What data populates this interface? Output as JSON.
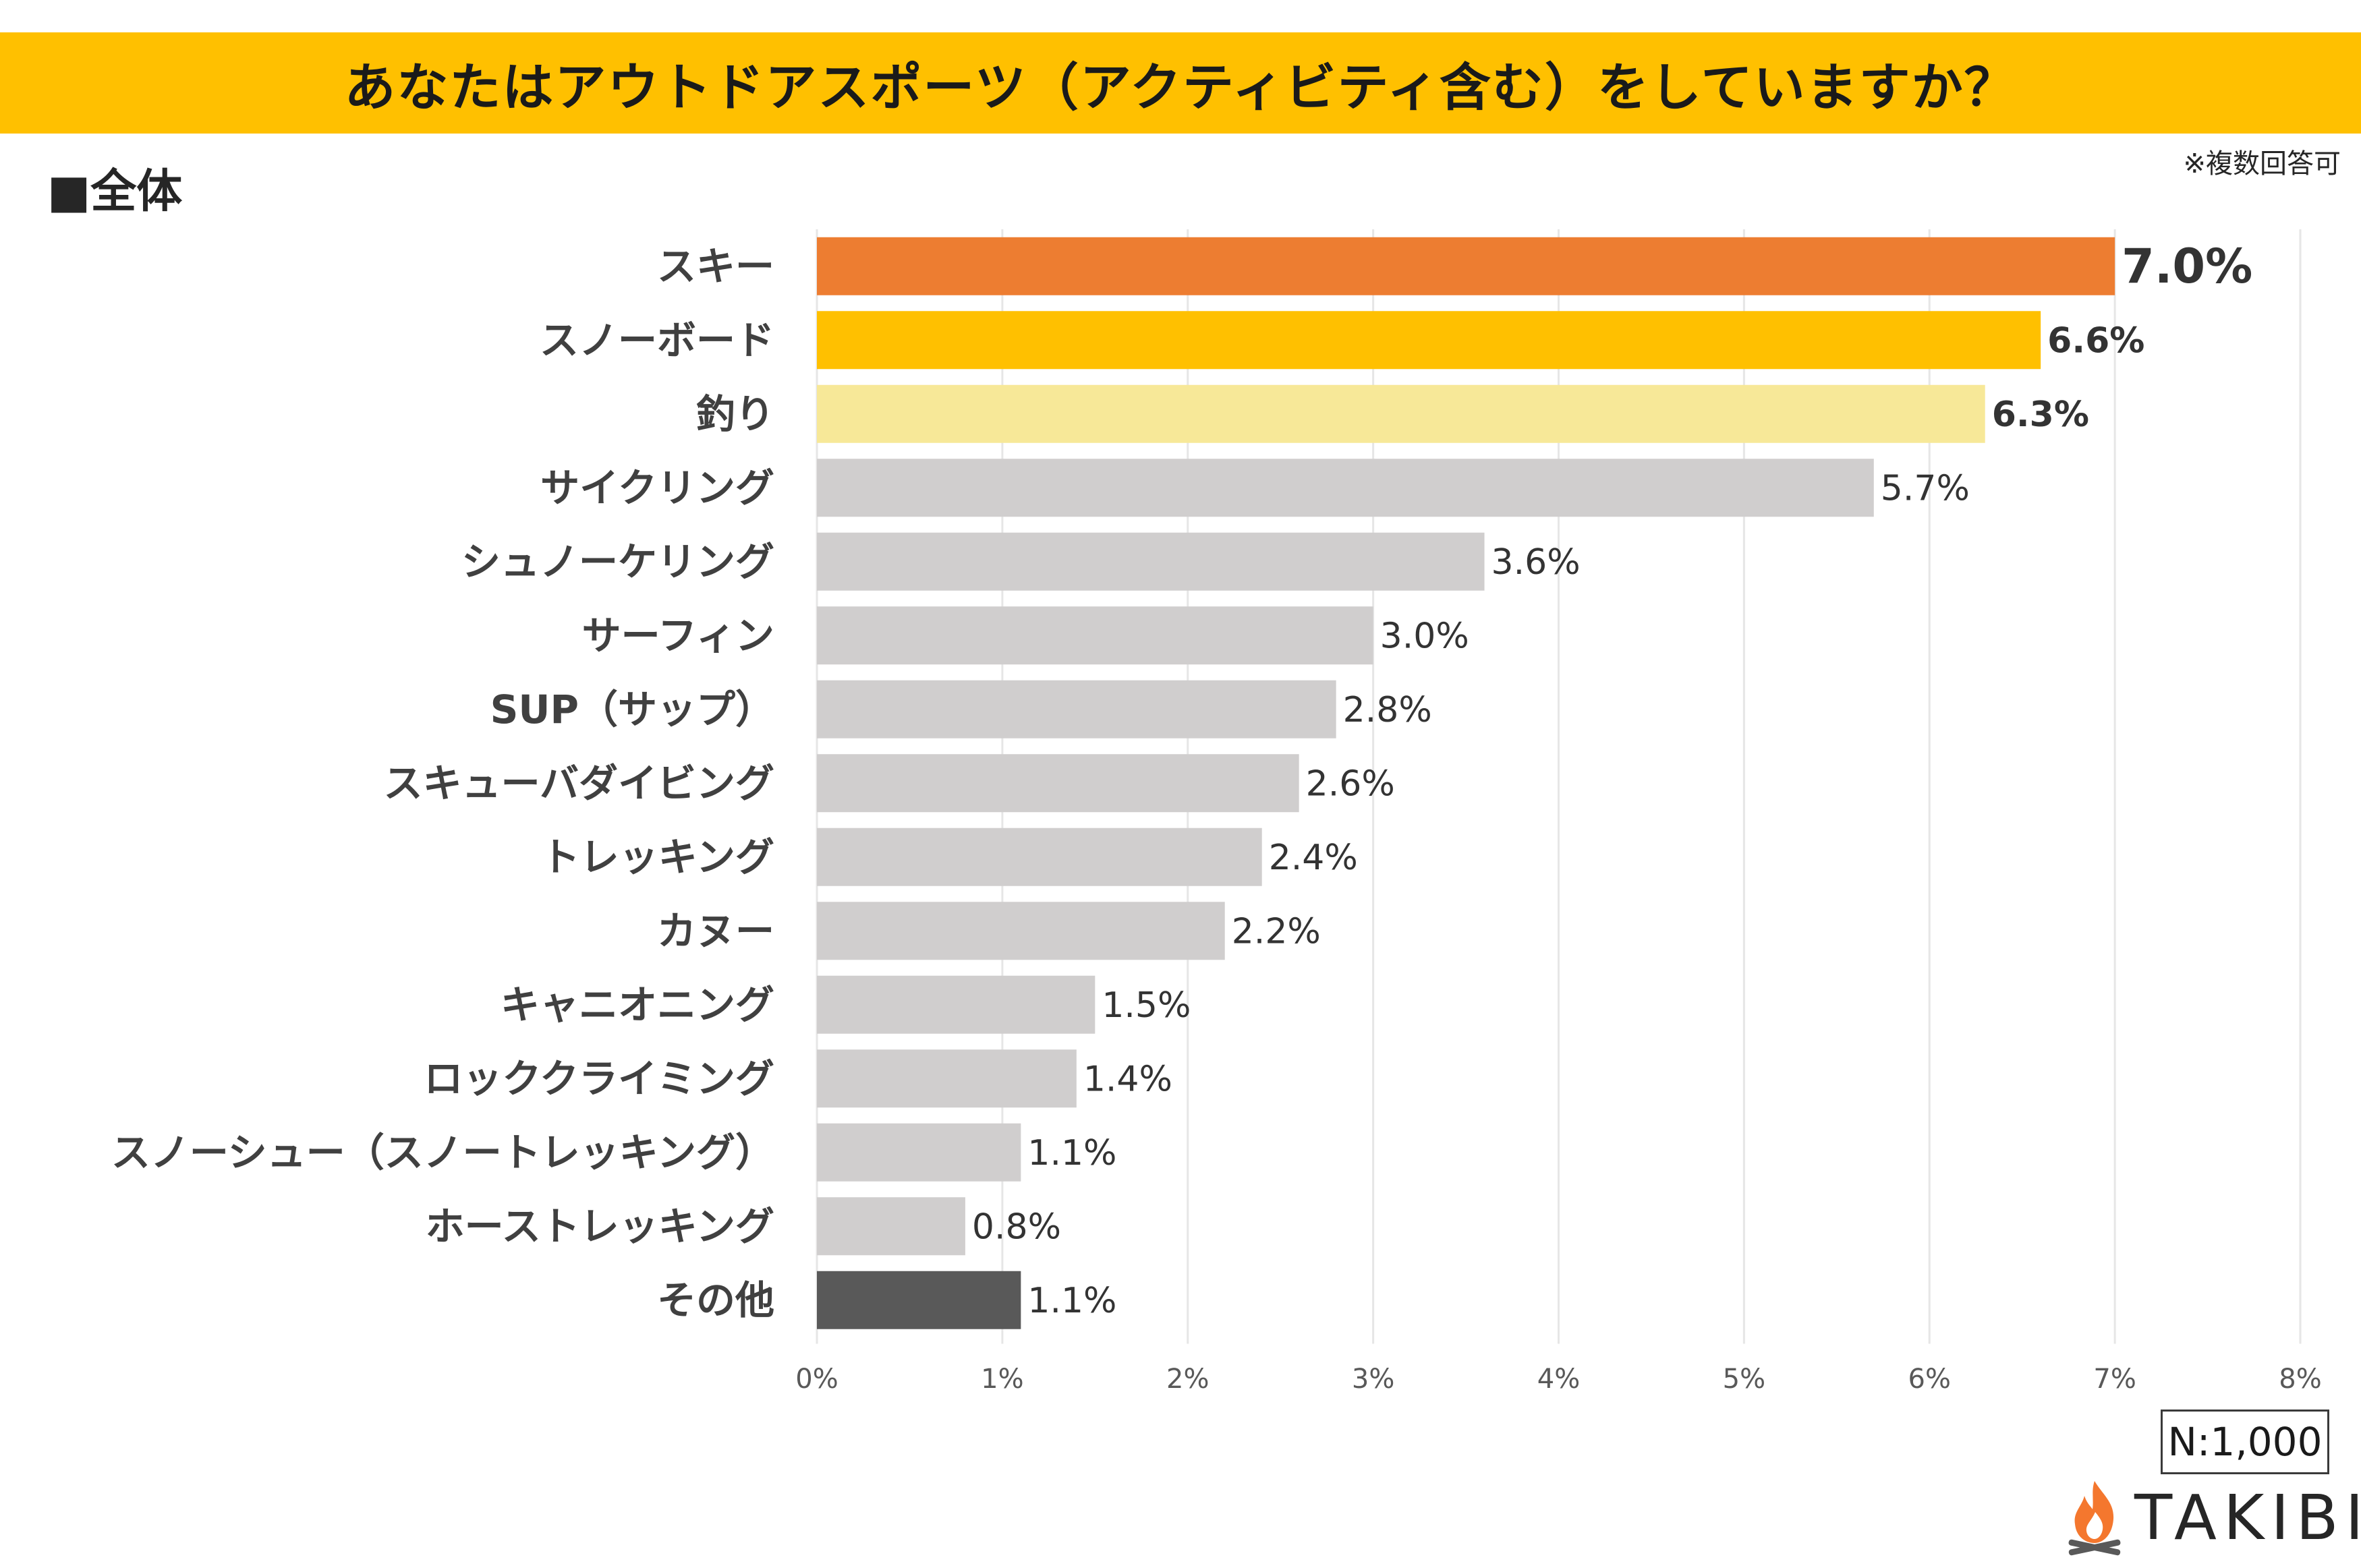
{
  "title": "あなたはアウトドアスポーツ（アクティビティ含む）をしていますか？",
  "section_label": "■全体",
  "note": "※複数回答可",
  "sample_size": "N:1,000",
  "brand": "TAKIBI",
  "icons": {
    "brand_icon": "campfire-icon"
  },
  "colors": {
    "title_bar": "#FFC000",
    "rank1": "#ED7D31",
    "rank2": "#FFC000",
    "rank3": "#F7E898",
    "default": "#D0CECE",
    "other": "#595959",
    "gridline": "#E6E6E6",
    "logo_flame": "#F4772E"
  },
  "chart_data": {
    "type": "bar",
    "orientation": "horizontal",
    "categories": [
      "スキー",
      "スノーボード",
      "釣り",
      "サイクリング",
      "シュノーケリング",
      "サーフィン",
      "SUP（サップ）",
      "スキューバダイビング",
      "トレッキング",
      "カヌー",
      "キャニオニング",
      "ロッククライミング",
      "スノーシュー（スノートレッキング）",
      "ホーストレッキング",
      "その他"
    ],
    "values": [
      7.0,
      6.6,
      6.3,
      5.7,
      3.6,
      3.0,
      2.8,
      2.6,
      2.4,
      2.2,
      1.5,
      1.4,
      1.1,
      0.8,
      1.1
    ],
    "value_labels": [
      "7.0%",
      "6.6%",
      "6.3%",
      "5.7%",
      "3.6%",
      "3.0%",
      "2.8%",
      "2.6%",
      "2.4%",
      "2.2%",
      "1.5%",
      "1.4%",
      "1.1%",
      "0.8%",
      "1.1%"
    ],
    "bar_colors": [
      "#ED7D31",
      "#FFC000",
      "#F7E898",
      "#D0CECE",
      "#D0CECE",
      "#D0CECE",
      "#D0CECE",
      "#D0CECE",
      "#D0CECE",
      "#D0CECE",
      "#D0CECE",
      "#D0CECE",
      "#D0CECE",
      "#D0CECE",
      "#595959"
    ],
    "highlight_ranks": 3,
    "x_ticks": [
      "0%",
      "1%",
      "2%",
      "3%",
      "4%",
      "5%",
      "6%",
      "7%",
      "8%"
    ],
    "xlim": [
      0,
      8
    ],
    "grid": true,
    "xlabel": "",
    "ylabel": "",
    "legend": "none"
  }
}
